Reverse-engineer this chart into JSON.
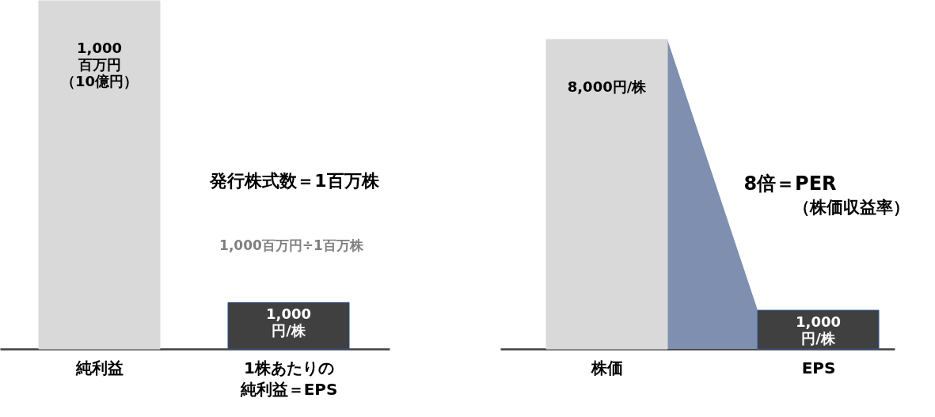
{
  "chart_data": [
    {
      "type": "bar",
      "categories": [
        "純利益",
        "1株あたりの純利益＝EPS"
      ],
      "series": [
        {
          "color": "#d9d9d9",
          "values": [
            1000,
            null
          ],
          "value_labels": [
            "1,000百万円（10億円）",
            null
          ]
        },
        {
          "color": "#404040",
          "axis": "y2",
          "values": [
            null,
            1000
          ],
          "value_labels": [
            null,
            "1,000円/株"
          ]
        }
      ],
      "ylim": [
        0,
        1000
      ],
      "y2lim": [
        0,
        7500
      ],
      "tick_labels": "x",
      "annotations": [
        "発行株式数＝1百万株",
        "1,000百万円÷1百万株"
      ]
    },
    {
      "type": "bar",
      "categories": [
        "株価",
        "EPS"
      ],
      "series": [
        {
          "type": "bar",
          "colors": [
            "#d9d9d9",
            "#404040"
          ],
          "values": [
            8000,
            1000
          ],
          "value_labels": [
            "8,000円/株",
            "1,000円/株"
          ]
        },
        {
          "type": "area",
          "color": "#7f8faf",
          "values": [
            8000,
            1000
          ]
        }
      ],
      "ylim": [
        0,
        9000
      ],
      "tick_labels": "x",
      "annotations": [
        "8倍＝PER",
        "（株価収益率）"
      ]
    }
  ]
}
